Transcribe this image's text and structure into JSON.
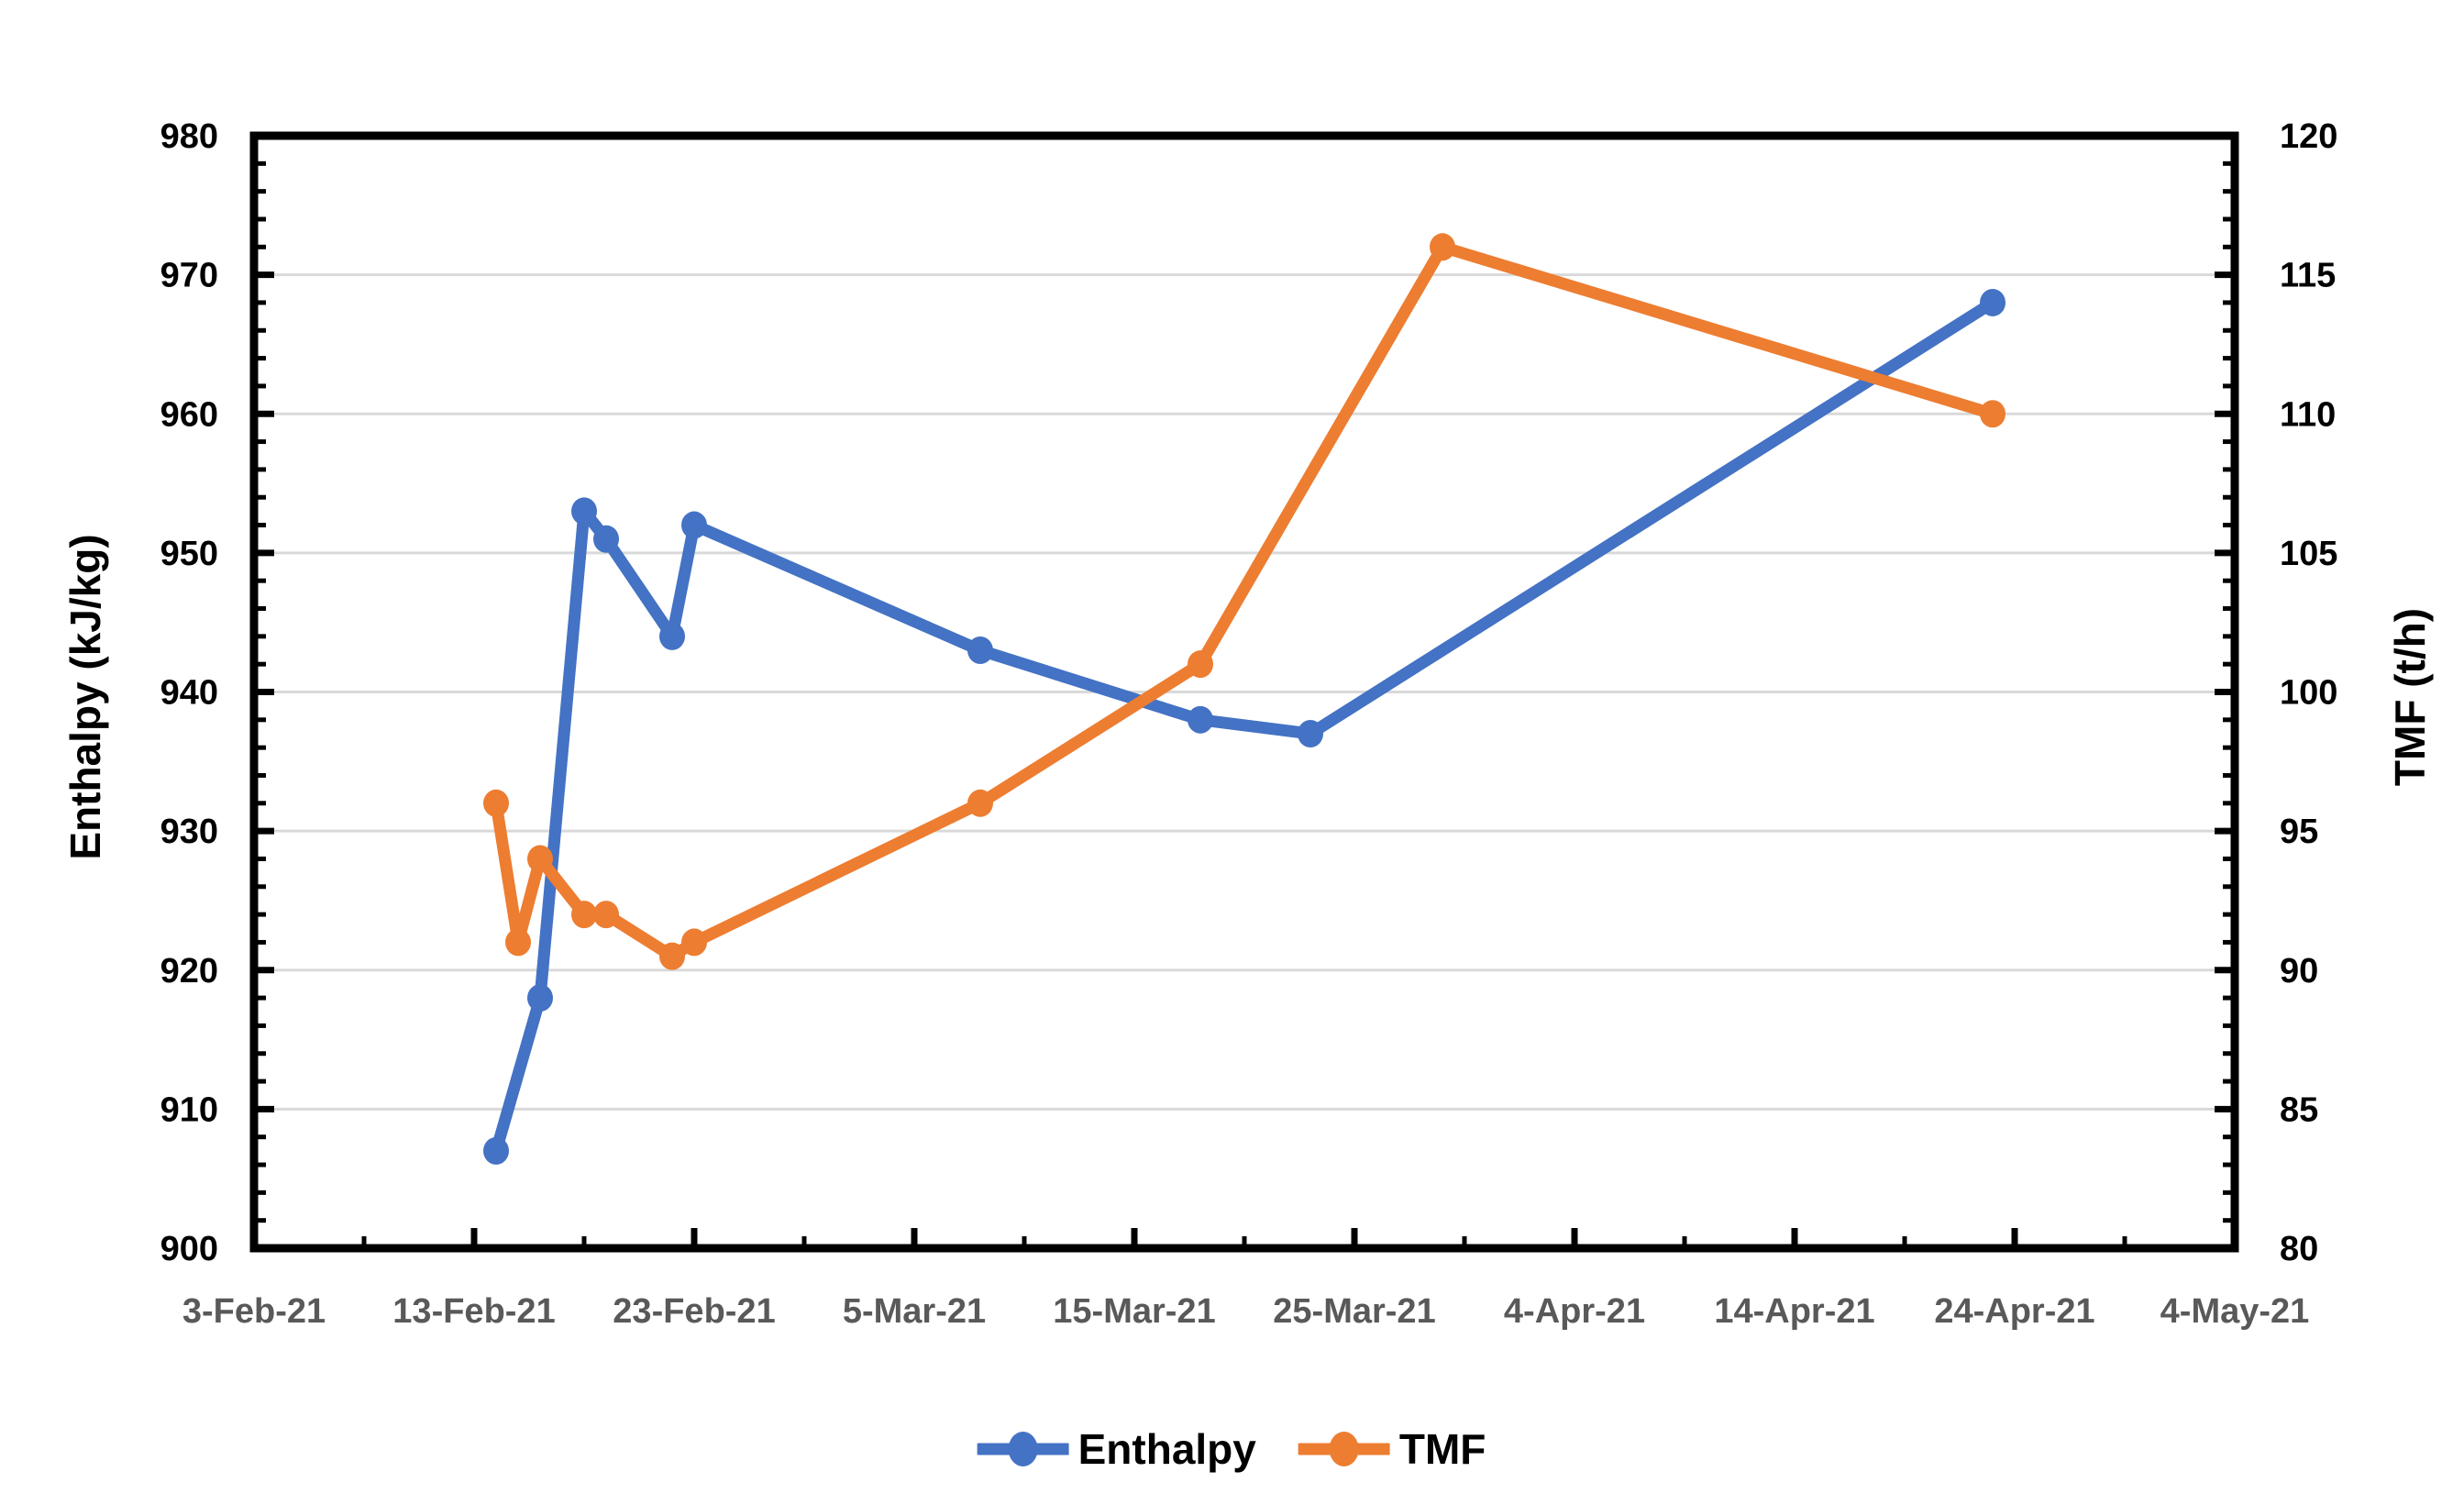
{
  "chart_data": {
    "type": "line",
    "x_axis": {
      "kind": "date",
      "range_days": [
        0,
        90
      ],
      "major_every_days": 10,
      "minor_every_days": 5,
      "tick_labels": [
        "3-Feb-21",
        "13-Feb-21",
        "23-Feb-21",
        "5-Mar-21",
        "15-Mar-21",
        "25-Mar-21",
        "4-Apr-21",
        "14-Apr-21",
        "24-Apr-21",
        "4-May-21"
      ],
      "tick_label_color": "#595959"
    },
    "y_left": {
      "title": "Enthalpy (kJ/kg)",
      "min": 900,
      "max": 980,
      "major": 10,
      "minor": 2,
      "tick_labels": [
        "900",
        "910",
        "920",
        "930",
        "940",
        "950",
        "960",
        "970",
        "980"
      ],
      "tick_label_color": "#000000"
    },
    "y_right": {
      "title": "TMF (t/h)",
      "min": 80,
      "max": 120,
      "major": 5,
      "minor": 1,
      "tick_labels": [
        "80",
        "85",
        "90",
        "95",
        "100",
        "105",
        "110",
        "115",
        "120"
      ],
      "tick_label_color": "#000000"
    },
    "grid": {
      "show_horizontal": true,
      "color": "#D9D9D9"
    },
    "axis_frame_color": "#000000",
    "legend_position": "bottom-center",
    "series": [
      {
        "name": "Enthalpy",
        "axis": "left",
        "color": "#4472C4",
        "points": [
          {
            "date": "14-Feb-21",
            "day": 11,
            "value": 907
          },
          {
            "date": "16-Feb-21",
            "day": 13,
            "value": 918
          },
          {
            "date": "18-Feb-21",
            "day": 15,
            "value": 953
          },
          {
            "date": "19-Feb-21",
            "day": 16,
            "value": 951
          },
          {
            "date": "22-Feb-21",
            "day": 19,
            "value": 944
          },
          {
            "date": "23-Feb-21",
            "day": 20,
            "value": 952
          },
          {
            "date": "8-Mar-21",
            "day": 33,
            "value": 943
          },
          {
            "date": "18-Mar-21",
            "day": 43,
            "value": 938
          },
          {
            "date": "23-Mar-21",
            "day": 48,
            "value": 937
          },
          {
            "date": "23-Apr-21",
            "day": 79,
            "value": 968
          }
        ]
      },
      {
        "name": "TMF",
        "axis": "right",
        "color": "#ED7D31",
        "points": [
          {
            "date": "14-Feb-21",
            "day": 11,
            "value": 96
          },
          {
            "date": "15-Feb-21",
            "day": 12,
            "value": 91
          },
          {
            "date": "16-Feb-21",
            "day": 13,
            "value": 94
          },
          {
            "date": "18-Feb-21",
            "day": 15,
            "value": 92
          },
          {
            "date": "19-Feb-21",
            "day": 16,
            "value": 92
          },
          {
            "date": "22-Feb-21",
            "day": 19,
            "value": 90.5
          },
          {
            "date": "23-Feb-21",
            "day": 20,
            "value": 91
          },
          {
            "date": "8-Mar-21",
            "day": 33,
            "value": 96
          },
          {
            "date": "18-Mar-21",
            "day": 43,
            "value": 101
          },
          {
            "date": "29-Mar-21",
            "day": 54,
            "value": 116
          },
          {
            "date": "23-Apr-21",
            "day": 79,
            "value": 110
          }
        ]
      }
    ]
  }
}
